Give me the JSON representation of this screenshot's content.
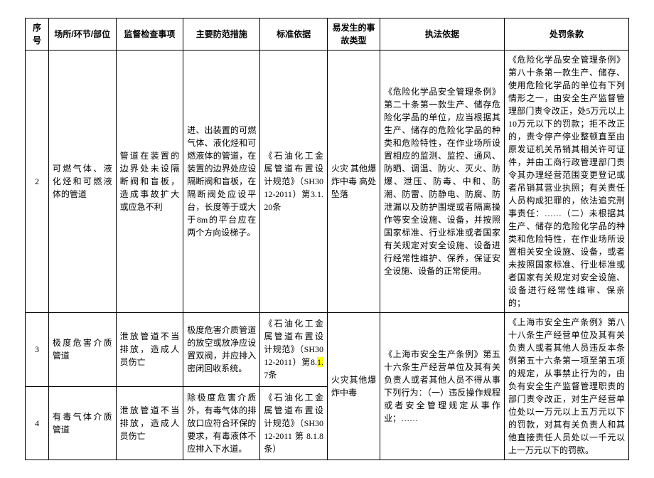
{
  "headers": {
    "seq": "序号",
    "location": "场所/环节/部位",
    "inspection": "监督检查事项",
    "measures": "主要防范措施",
    "standard": "标准依据",
    "accident": "易发生的事故类型",
    "lawbasis": "执法依据",
    "penalty": "处罚条款"
  },
  "rows": [
    {
      "seq": "2",
      "location": "可燃气体、液化烃和可燃液体的管道",
      "inspection": "管道在装置的边界处未设隔断阀和盲板，造成事故扩大或应急不利",
      "measures": "进、出装置的可燃气体、液化烃和可燃液体的管道，在装置的边界处应设隔断阀和盲板，在隔断阀处应设平台，长度等于或大于8m的平台应在两个方向设梯子。",
      "standard": "《石油化工金属管道布置设计规范》（SH3012-2011）第3.1.20条",
      "accident": "火灾\n其他爆炸中毒\n高处坠落",
      "lawbasis": "《危险化学品安全管理条例》第二十条第一款生产、储存危险化学品的单位，应当根据其生产、储存的危险化学品的种类和危险特性，在作业场所设置相应的监测、监控、通风、防晒、调温、防火、灭火、防爆、泄压、防毒、中和、防潮、防雷、防静电、防腐、防泄漏以及防护围堤或者隔离操作等安全设施、设备，并按照国家标准、行业标准或者国家有关规定对安全设施、设备进行经常性维护、保养，保证安全设施、设备的正常使用。",
      "penalty": "《危险化学品安全管理条例》第八十条第一款生产、储存、使用危险化学品的单位有下列情形之一，由安全生产监督管理部门责令改正，处5万元以上10万元以下的罚款；拒不改正的，责令停产停业整顿直至由原发证机关吊销其相关许可证件，并由工商行政管理部门责令其办理经营范围变更登记或者吊销其营业执照；有关责任人员构成犯罪的，依法追究刑事责任：……（二）未根据其生产、储存的危险化学品的种类和危险特性，在作业场所设置相关安全设施、设备，或者未按照国家标准、行业标准或者国家有关规定对安全设施、设备进行经常性维审、保亲的；"
    },
    {
      "seq": "3",
      "location": "极度危害介质管道",
      "inspection": "泄放管道不当排放，造成人员伤亡",
      "measures": "极度危害介质管道的放空或放净应设置双阀，并应排入密闭回收系统。",
      "standard_a": "《石油化工金属管道布置设计规范》（SH3012-2011）第8.",
      "standard_hl": "1.",
      "standard_b": "7条",
      "accident": "火灾其他爆炸中毒",
      "lawbasis": "《上海市安全生产条例》第五十六条生产经营单位及其有关负责人或者其他人员不得从事下列行为：（一）违反操作规程或者安全管理规定从事作业；……",
      "penalty": "《上海市安全生产条例》第八十八条生产经营单位及其有关负责人或者其他人员违反本条例第五十六条第一项至第五项的规定，从事禁止行为的，由负有安全生产监督管理职责的部门责令改正，对生产经营单位处以一万元以上五万元以下的罚款，对其有关负责人和其他直接责任人员处以一千元以上一万元以下的罚款。"
    },
    {
      "seq": "4",
      "location": "有毒气体介质管道",
      "inspection": "泄放管道不当排放，造成人员伤亡",
      "measures": "除极度危害介质外，有毒气体的排放口应符合环保的要求，有毒液体不应排入下水道。",
      "standard": "《石油化工金属管道布置设计规范》（SH3012-2011第8.1.8条）"
    }
  ]
}
